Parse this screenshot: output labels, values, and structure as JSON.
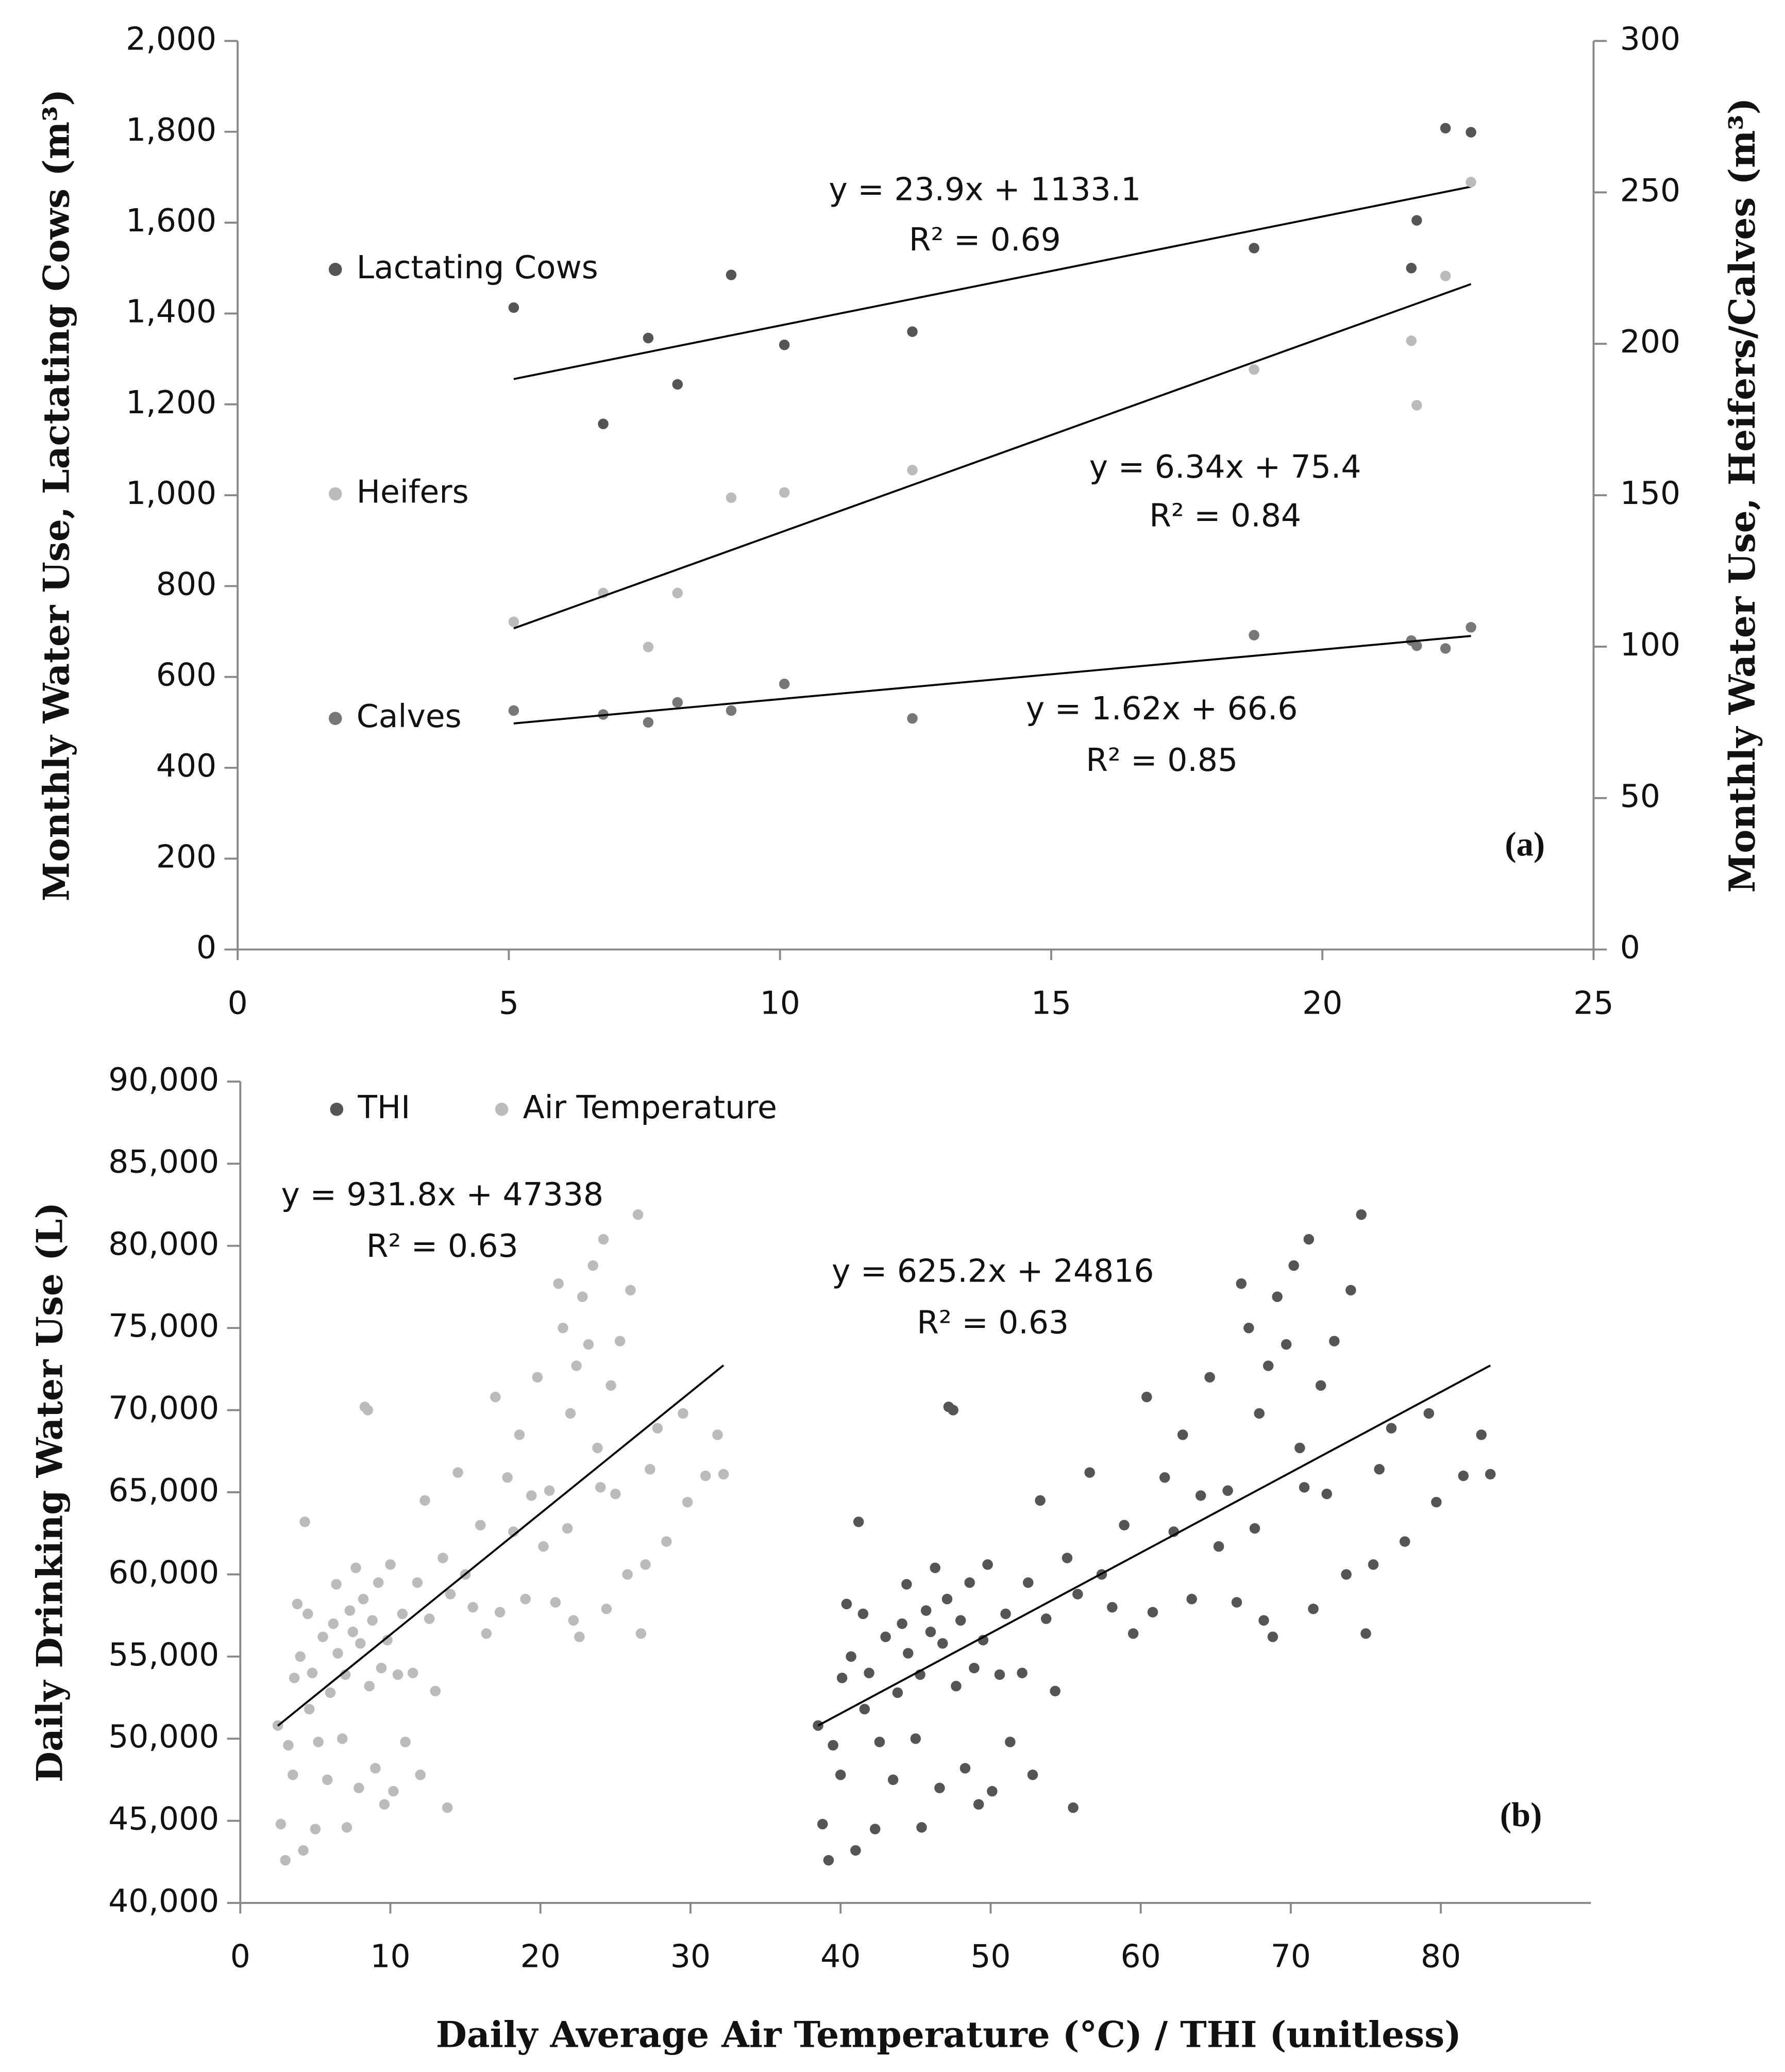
{
  "chart_data": [
    {
      "type": "scatter",
      "xlim": [
        0,
        25
      ],
      "xticks": [
        0,
        5,
        10,
        15,
        20,
        25
      ],
      "ylim": [
        0,
        2000
      ],
      "yticks": [
        0,
        200,
        400,
        600,
        800,
        {
          "value": 1000,
          "label": "1,000"
        },
        {
          "value": 1200,
          "label": "1,200"
        },
        {
          "value": 1400,
          "label": "1,400"
        },
        {
          "value": 1600,
          "label": "1,600"
        },
        {
          "value": 1800,
          "label": "1,800"
        },
        {
          "value": 2000,
          "label": "2,000"
        }
      ],
      "y2lim": [
        0,
        300
      ],
      "y2ticks": [
        0,
        50,
        100,
        150,
        200,
        250,
        300
      ],
      "ylabel": "Monthly Water Use, Lactating Cows (m³)",
      "y2label": "Monthly Water Use,  Heifers/Calves (m³)",
      "legend": "left",
      "trendline": true,
      "series": [
        {
          "name": "Lactating Cows",
          "color": "#555555",
          "x": [
            5.09,
            6.74,
            7.57,
            8.11,
            9.1,
            10.08,
            12.44,
            18.74,
            21.64,
            21.74,
            22.27,
            22.74
          ],
          "y": [
            1413,
            1157,
            1346,
            1244,
            1485,
            1331,
            1360,
            1544,
            1500,
            1605,
            1808,
            1799
          ]
        },
        {
          "name": "Heifers",
          "color": "#bbbbbb",
          "axis": "y2",
          "x": [
            5.09,
            6.74,
            7.57,
            8.11,
            9.1,
            10.08,
            12.44,
            18.74,
            21.64,
            21.74,
            22.27,
            22.74
          ],
          "y": [
            108.2,
            117.7,
            99.9,
            117.7,
            149.2,
            150.9,
            158.3,
            191.5,
            201,
            179.7,
            222.4,
            253.4
          ]
        },
        {
          "name": "Calves",
          "color": "#777777",
          "axis": "y2",
          "x": [
            5.09,
            6.74,
            7.57,
            8.11,
            9.1,
            10.08,
            12.44,
            18.74,
            21.64,
            21.74,
            22.27,
            22.74
          ],
          "y": [
            78.9,
            77.6,
            75.0,
            81.6,
            78.9,
            87.7,
            76.3,
            103.8,
            102.0,
            100.3,
            99.4,
            106.4
          ]
        }
      ],
      "annotations": [
        "y = 23.9x + 1133.1",
        "R² = 0.69",
        "y = 6.34x + 75.4",
        "R² = 0.84",
        "y = 1.62x + 66.6",
        "R² = 0.85"
      ],
      "panel_label": "(a)"
    },
    {
      "type": "scatter",
      "xlim": [
        0,
        90
      ],
      "xticks": [
        0,
        10,
        20,
        30,
        40,
        50,
        60,
        70,
        80
      ],
      "ylim": [
        40000,
        90000
      ],
      "yticks": [
        {
          "value": 40000,
          "label": "40,000"
        },
        {
          "value": 45000,
          "label": "45,000"
        },
        {
          "value": 50000,
          "label": "50,000"
        },
        {
          "value": 55000,
          "label": "55,000"
        },
        {
          "value": 60000,
          "label": "60,000"
        },
        {
          "value": 65000,
          "label": "65,000"
        },
        {
          "value": 70000,
          "label": "70,000"
        },
        {
          "value": 75000,
          "label": "75,000"
        },
        {
          "value": 80000,
          "label": "80,000"
        },
        {
          "value": 85000,
          "label": "85,000"
        },
        {
          "value": 90000,
          "label": "90,000"
        }
      ],
      "xlabel": "Daily Average Air Temperature (°C) / THI (unitless)",
      "ylabel": "Daily Drinking Water Use (L)",
      "legend": "top-left",
      "trendline": true,
      "series": [
        {
          "name": "THI",
          "color": "#555555",
          "x": [
            38.5,
            38.8,
            39.2,
            39.5,
            40.0,
            40.1,
            40.4,
            40.7,
            41.0,
            41.2,
            41.5,
            41.6,
            41.9,
            42.3,
            42.6,
            43.0,
            43.5,
            43.8,
            44.1,
            44.4,
            44.5,
            45.0,
            45.3,
            45.4,
            45.7,
            46.0,
            46.3,
            46.6,
            46.8,
            47.1,
            47.2,
            47.5,
            47.7,
            48.0,
            48.3,
            48.6,
            48.9,
            49.2,
            49.5,
            49.8,
            50.1,
            50.6,
            51.0,
            51.3,
            52.1,
            52.5,
            52.8,
            53.3,
            53.7,
            54.3,
            55.1,
            55.5,
            55.8,
            56.6,
            57.4,
            58.1,
            58.9,
            59.5,
            60.4,
            60.8,
            61.6,
            62.2,
            62.8,
            63.4,
            64.0,
            64.6,
            65.2,
            65.8,
            66.4,
            66.7,
            67.2,
            67.6,
            67.9,
            68.2,
            68.5,
            68.8,
            69.1,
            69.7,
            70.2,
            70.6,
            70.9,
            71.2,
            71.5,
            72.0,
            72.4,
            72.9,
            73.7,
            74.0,
            74.7,
            75.0,
            75.5,
            75.9,
            76.7,
            77.6,
            79.2,
            79.7,
            81.5,
            82.7,
            83.3
          ],
          "y": [
            50800,
            44800,
            42600,
            49600,
            47800,
            53700,
            58200,
            55000,
            43200,
            63200,
            57600,
            51800,
            54000,
            44500,
            49800,
            56200,
            47500,
            52800,
            57000,
            59400,
            55200,
            50000,
            53900,
            44600,
            57800,
            56500,
            60400,
            47000,
            55800,
            58500,
            70200,
            70000,
            53200,
            57200,
            48200,
            59500,
            54300,
            46000,
            56000,
            60600,
            46800,
            53900,
            57600,
            49800,
            54000,
            59500,
            47800,
            64500,
            57300,
            52900,
            61000,
            45800,
            58800,
            66200,
            60000,
            58000,
            63000,
            56400,
            70800,
            57700,
            65900,
            62600,
            68500,
            58500,
            64800,
            72000,
            61700,
            65100,
            58300,
            77700,
            75000,
            62800,
            69800,
            57200,
            72700,
            56200,
            76900,
            74000,
            78800,
            67700,
            65300,
            80400,
            57900,
            71500,
            64900,
            74200,
            60000,
            77300,
            81900,
            56400,
            60600,
            66400,
            68900,
            62000,
            69800,
            64400,
            66000,
            68500,
            66100
          ]
        },
        {
          "name": "Air Temperature",
          "color": "#bbbbbb",
          "x": [
            2.5,
            2.7,
            3.0,
            3.2,
            3.5,
            3.6,
            3.8,
            4.0,
            4.2,
            4.3,
            4.5,
            4.6,
            4.8,
            5.0,
            5.2,
            5.5,
            5.8,
            6.0,
            6.2,
            6.4,
            6.5,
            6.8,
            7.0,
            7.1,
            7.3,
            7.5,
            7.7,
            7.9,
            8.0,
            8.2,
            8.3,
            8.5,
            8.6,
            8.8,
            9.0,
            9.2,
            9.4,
            9.6,
            9.8,
            10.0,
            10.2,
            10.5,
            10.8,
            11.0,
            11.5,
            11.8,
            12.0,
            12.3,
            12.6,
            13.0,
            13.5,
            13.8,
            14.0,
            14.5,
            15.0,
            15.5,
            16.0,
            16.4,
            17.0,
            17.3,
            17.8,
            18.2,
            18.6,
            19.0,
            19.4,
            19.8,
            20.2,
            20.6,
            21.0,
            21.2,
            21.5,
            21.8,
            22.0,
            22.2,
            22.4,
            22.6,
            22.8,
            23.2,
            23.5,
            23.8,
            24.0,
            24.2,
            24.4,
            24.7,
            25.0,
            25.3,
            25.8,
            26.0,
            26.5,
            26.7,
            27.0,
            27.3,
            27.8,
            28.4,
            29.5,
            29.8,
            31.0,
            31.8,
            32.2
          ],
          "y": [
            50800,
            44800,
            42600,
            49600,
            47800,
            53700,
            58200,
            55000,
            43200,
            63200,
            57600,
            51800,
            54000,
            44500,
            49800,
            56200,
            47500,
            52800,
            57000,
            59400,
            55200,
            50000,
            53900,
            44600,
            57800,
            56500,
            60400,
            47000,
            55800,
            58500,
            70200,
            70000,
            53200,
            57200,
            48200,
            59500,
            54300,
            46000,
            56000,
            60600,
            46800,
            53900,
            57600,
            49800,
            54000,
            59500,
            47800,
            64500,
            57300,
            52900,
            61000,
            45800,
            58800,
            66200,
            60000,
            58000,
            63000,
            56400,
            70800,
            57700,
            65900,
            62600,
            68500,
            58500,
            64800,
            72000,
            61700,
            65100,
            58300,
            77700,
            75000,
            62800,
            69800,
            57200,
            72700,
            56200,
            76900,
            74000,
            78800,
            67700,
            65300,
            80400,
            57900,
            71500,
            64900,
            74200,
            60000,
            77300,
            81900,
            56400,
            60600,
            66400,
            68900,
            62000,
            69800,
            64400,
            66000,
            68500,
            66100
          ]
        }
      ],
      "annotations": [
        "y = 931.8x + 47338",
        "R² = 0.63",
        "y = 625.2x + 24816",
        "R² = 0.63"
      ],
      "panel_label": "(b)"
    }
  ]
}
